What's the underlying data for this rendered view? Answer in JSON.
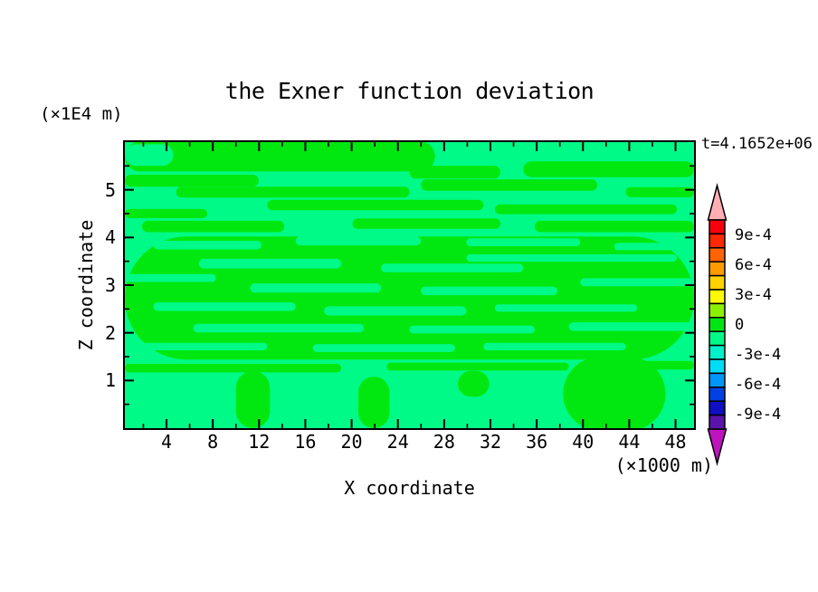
{
  "title": "the Exner function deviation",
  "time_label": "t=4.1652e+06",
  "y_axis": {
    "unit": "(×IE4 m)",
    "unit_text": "(×1E4 m)",
    "label": "Z coordinate",
    "major_ticks": [
      1,
      2,
      3,
      4,
      5
    ],
    "minor_ticks": [
      0.5,
      1.5,
      2.5,
      3.5,
      4.5,
      5.5
    ],
    "range": [
      0.0,
      6.0
    ]
  },
  "x_axis": {
    "label": "X coordinate",
    "unit": "(×1000 m)",
    "major_ticks": [
      4,
      8,
      12,
      16,
      20,
      24,
      28,
      32,
      36,
      40,
      44,
      48
    ],
    "minor_ticks": [
      2,
      6,
      10,
      14,
      18,
      22,
      26,
      30,
      34,
      38,
      42,
      46
    ],
    "range": [
      0.4,
      49.6
    ]
  },
  "colorbar": {
    "top_value": 0.00105,
    "bottom_value": -0.00105,
    "arrow_top_color": "#FFAEB4",
    "arrow_bottom_color": "#BE14BE",
    "segment_colors": [
      "#FA000F",
      "#FF2800",
      "#FF6400",
      "#FF9B00",
      "#FFD200",
      "#FAFA00",
      "#8CF000",
      "#00E614",
      "#00FA87",
      "#00F0C8",
      "#00DCF5",
      "#0096FA",
      "#0041E6",
      "#0F0FC3",
      "#5A14AA"
    ],
    "labels": [
      {
        "text": "9e-4",
        "value": 0.0009
      },
      {
        "text": "6e-4",
        "value": 0.0006
      },
      {
        "text": "3e-4",
        "value": 0.0003
      },
      {
        "text": "0",
        "value": 0.0
      },
      {
        "text": "-3e-4",
        "value": -0.0003
      },
      {
        "text": "-6e-4",
        "value": -0.0006
      },
      {
        "text": "-9e-4",
        "value": -0.0009
      }
    ]
  },
  "chart_data": {
    "type": "heatmap",
    "subtype": "filled-contour",
    "title": "the Exner function deviation",
    "xlabel": "X coordinate",
    "ylabel": "Z coordinate",
    "x_unit": "(×1000 m)",
    "y_unit": "(×1E4 m)",
    "time_annotation": "t=4.1652e+06",
    "x_ticks": [
      4,
      8,
      12,
      16,
      20,
      24,
      28,
      32,
      36,
      40,
      44,
      48
    ],
    "y_ticks": [
      1,
      2,
      3,
      4,
      5
    ],
    "x_range": [
      0.4,
      49.6
    ],
    "y_range": [
      0.0,
      6.0
    ],
    "contour_interval": 0.00015,
    "colorbar_labeled_levels": [
      0.0009,
      0.0006,
      0.0003,
      0,
      -0.0003,
      -0.0006,
      -0.0009
    ],
    "visible_bands": [
      {
        "range_min": 0.0,
        "range_max": 0.00015,
        "color": "#00E80F",
        "name": "positive-band"
      },
      {
        "range_min": -0.00015,
        "range_max": 0.0,
        "color": "#00FA87",
        "name": "negative-band"
      }
    ],
    "field_summary": "Deviation field stays within ±1.5e-4: horizontally elongated streaks of weakly positive values (green) interleaved with weakly negative background (spring green); large negative patches in the corners and along the bottom boundary.",
    "pos_color": "#00E80F",
    "neg_color": "#00FA87",
    "regions": [
      {
        "band": "pos",
        "x0": 0.0,
        "x1": 0.545,
        "y": 0.05,
        "h": 0.105
      },
      {
        "band": "pos",
        "x0": 0.5,
        "x1": 0.66,
        "y": 0.105,
        "h": 0.045
      },
      {
        "band": "pos",
        "x0": 0.7,
        "x1": 1.0,
        "y": 0.095,
        "h": 0.055
      },
      {
        "band": "pos",
        "x0": 0.88,
        "x1": 1.0,
        "y": 0.175,
        "h": 0.035
      },
      {
        "band": "pos",
        "x0": 0.0,
        "x1": 0.235,
        "y": 0.135,
        "h": 0.042
      },
      {
        "band": "pos",
        "x0": 0.09,
        "x1": 0.5,
        "y": 0.175,
        "h": 0.038
      },
      {
        "band": "pos",
        "x0": 0.52,
        "x1": 0.83,
        "y": 0.15,
        "h": 0.04
      },
      {
        "band": "pos",
        "x0": 0.25,
        "x1": 0.63,
        "y": 0.22,
        "h": 0.036
      },
      {
        "band": "pos",
        "x0": 0.65,
        "x1": 0.97,
        "y": 0.235,
        "h": 0.034
      },
      {
        "band": "pos",
        "x0": 0.0,
        "x1": 0.145,
        "y": 0.25,
        "h": 0.032
      },
      {
        "band": "pos",
        "x0": 0.03,
        "x1": 0.28,
        "y": 0.295,
        "h": 0.04
      },
      {
        "band": "pos",
        "x0": 0.4,
        "x1": 0.66,
        "y": 0.285,
        "h": 0.036
      },
      {
        "band": "pos",
        "x0": 0.72,
        "x1": 1.0,
        "y": 0.295,
        "h": 0.04
      },
      {
        "band": "pos",
        "x0": 0.0,
        "x1": 1.0,
        "y": 0.545,
        "h": 0.43
      },
      {
        "band": "pos",
        "x0": 0.0,
        "x1": 0.38,
        "y": 0.79,
        "h": 0.03
      },
      {
        "band": "pos",
        "x0": 0.46,
        "x1": 0.78,
        "y": 0.785,
        "h": 0.028
      },
      {
        "band": "pos",
        "x0": 0.84,
        "x1": 1.0,
        "y": 0.78,
        "h": 0.03
      },
      {
        "band": "pos",
        "x0": 0.195,
        "x1": 0.255,
        "y": 0.9,
        "h": 0.2
      },
      {
        "band": "pos",
        "x0": 0.41,
        "x1": 0.465,
        "y": 0.91,
        "h": 0.18
      },
      {
        "band": "pos",
        "x0": 0.77,
        "x1": 0.95,
        "y": 0.88,
        "h": 0.26
      },
      {
        "band": "pos",
        "x0": 0.585,
        "x1": 0.64,
        "y": 0.845,
        "h": 0.09
      },
      {
        "band": "neg",
        "x0": 0.0,
        "x1": 0.085,
        "y": 0.045,
        "h": 0.075
      },
      {
        "band": "neg",
        "x0": 0.05,
        "x1": 0.24,
        "y": 0.36,
        "h": 0.03
      },
      {
        "band": "neg",
        "x0": 0.3,
        "x1": 0.52,
        "y": 0.345,
        "h": 0.032
      },
      {
        "band": "neg",
        "x0": 0.6,
        "x1": 0.8,
        "y": 0.35,
        "h": 0.028
      },
      {
        "band": "neg",
        "x0": 0.86,
        "x1": 1.0,
        "y": 0.365,
        "h": 0.026
      },
      {
        "band": "neg",
        "x0": 0.13,
        "x1": 0.38,
        "y": 0.425,
        "h": 0.034
      },
      {
        "band": "neg",
        "x0": 0.45,
        "x1": 0.7,
        "y": 0.44,
        "h": 0.03
      },
      {
        "band": "neg",
        "x0": 0.6,
        "x1": 0.97,
        "y": 0.405,
        "h": 0.026
      },
      {
        "band": "neg",
        "x0": 0.0,
        "x1": 0.16,
        "y": 0.475,
        "h": 0.028
      },
      {
        "band": "neg",
        "x0": 0.22,
        "x1": 0.45,
        "y": 0.51,
        "h": 0.032
      },
      {
        "band": "neg",
        "x0": 0.52,
        "x1": 0.76,
        "y": 0.52,
        "h": 0.03
      },
      {
        "band": "neg",
        "x0": 0.8,
        "x1": 1.0,
        "y": 0.49,
        "h": 0.028
      },
      {
        "band": "neg",
        "x0": 0.05,
        "x1": 0.3,
        "y": 0.575,
        "h": 0.03
      },
      {
        "band": "neg",
        "x0": 0.35,
        "x1": 0.6,
        "y": 0.59,
        "h": 0.032
      },
      {
        "band": "neg",
        "x0": 0.65,
        "x1": 0.9,
        "y": 0.58,
        "h": 0.026
      },
      {
        "band": "neg",
        "x0": 0.12,
        "x1": 0.42,
        "y": 0.65,
        "h": 0.03
      },
      {
        "band": "neg",
        "x0": 0.5,
        "x1": 0.72,
        "y": 0.655,
        "h": 0.028
      },
      {
        "band": "neg",
        "x0": 0.78,
        "x1": 1.0,
        "y": 0.645,
        "h": 0.03
      },
      {
        "band": "neg",
        "x0": 0.0,
        "x1": 0.25,
        "y": 0.715,
        "h": 0.026
      },
      {
        "band": "neg",
        "x0": 0.33,
        "x1": 0.58,
        "y": 0.72,
        "h": 0.028
      },
      {
        "band": "neg",
        "x0": 0.63,
        "x1": 0.88,
        "y": 0.715,
        "h": 0.026
      },
      {
        "band": "neg",
        "x0": 0.0,
        "x1": 0.195,
        "y": 0.93,
        "h": 0.22
      },
      {
        "band": "neg",
        "x0": 0.26,
        "x1": 0.405,
        "y": 0.935,
        "h": 0.19
      },
      {
        "band": "neg",
        "x0": 0.475,
        "x1": 0.575,
        "y": 0.92,
        "h": 0.2
      },
      {
        "band": "neg",
        "x0": 0.655,
        "x1": 0.765,
        "y": 0.94,
        "h": 0.16
      },
      {
        "band": "neg",
        "x0": 0.955,
        "x1": 1.0,
        "y": 0.93,
        "h": 0.16
      }
    ]
  }
}
